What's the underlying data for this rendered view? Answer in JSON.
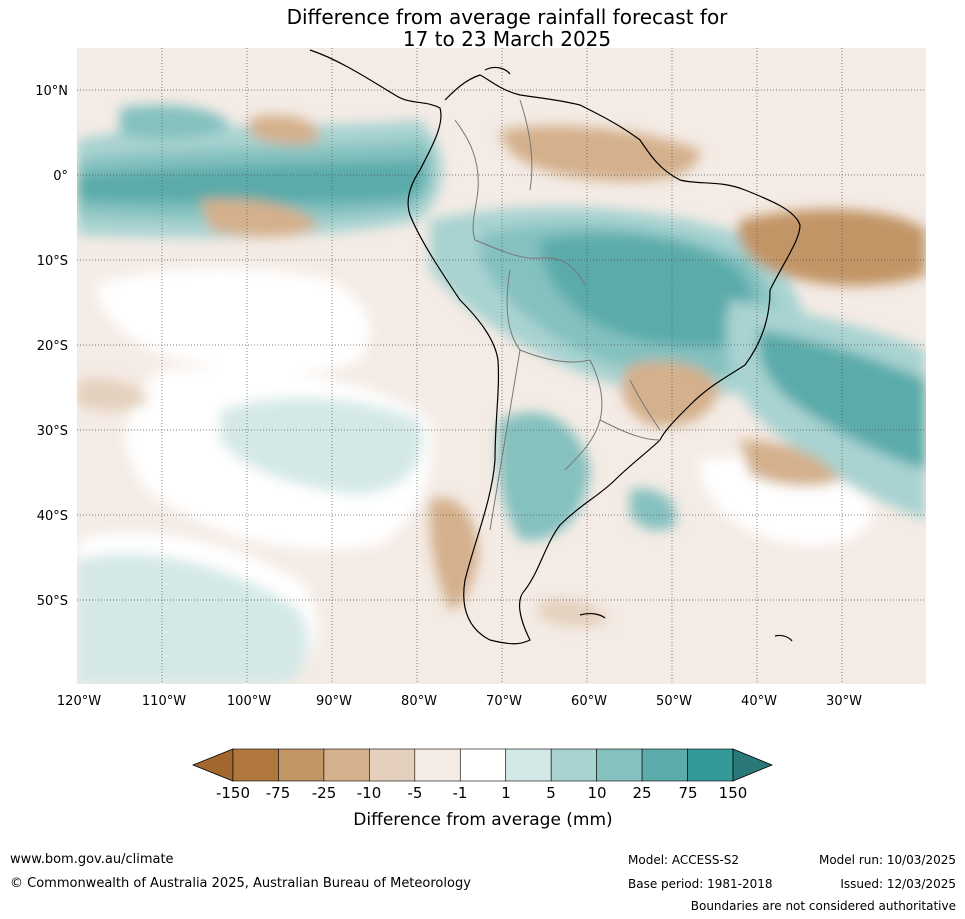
{
  "title_line1": "Difference from average rainfall forecast for",
  "title_line2": "17 to 23 March 2025",
  "lat_labels": [
    "10°N",
    "0°",
    "10°S",
    "20°S",
    "30°S",
    "40°S",
    "50°S"
  ],
  "lon_labels": [
    "120°W",
    "110°W",
    "100°W",
    "90°W",
    "80°W",
    "70°W",
    "60°W",
    "50°W",
    "40°W",
    "30°W"
  ],
  "colorbar": {
    "title": "Difference from average (mm)",
    "labels": [
      "-150",
      "-75",
      "-25",
      "-10",
      "-5",
      "-1",
      "1",
      "5",
      "10",
      "25",
      "75",
      "150"
    ],
    "colors": [
      "#a4682f",
      "#b0773c",
      "#c29566",
      "#d4b08c",
      "#e4d0bd",
      "#f4ebe5",
      "#ffffff",
      "#d4e9e7",
      "#a8d3d1",
      "#84c1bf",
      "#5aabaa",
      "#35999a",
      "#2a7877"
    ]
  },
  "footer": {
    "website": "www.bom.gov.au/climate",
    "copyright": "© Commonwealth of Australia 2025, Australian Bureau of Meteorology",
    "model": "Model: ACCESS-S2",
    "base_period": "Base period: 1981-2018",
    "model_run": "Model run: 10/03/2025",
    "issued": "Issued: 12/03/2025",
    "disclaimer": "Boundaries are not considered authoritative"
  }
}
